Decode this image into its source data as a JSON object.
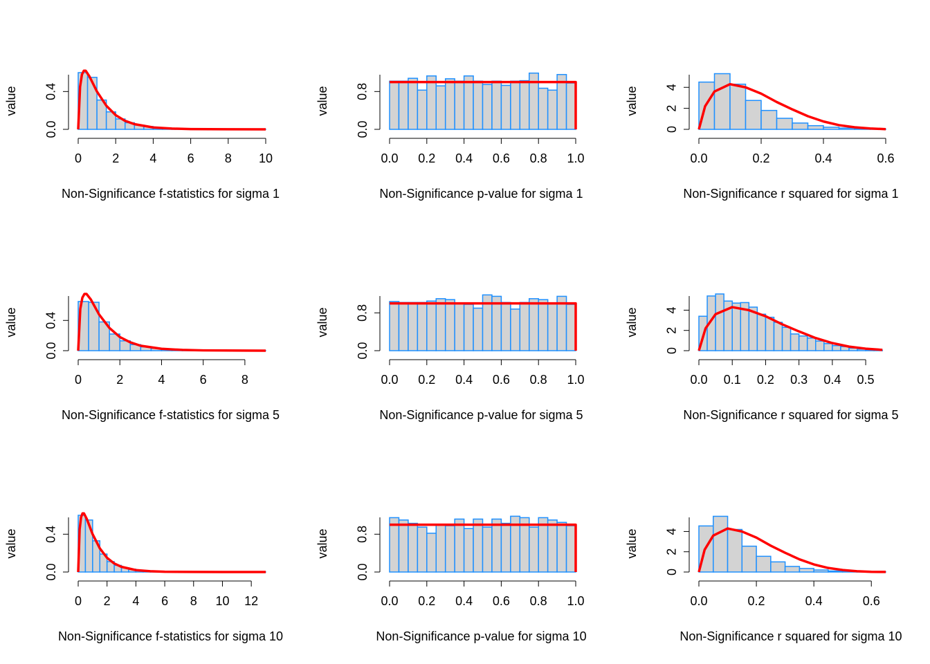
{
  "chart_data": [
    {
      "type": "histogram",
      "x_label": "Non-Significance f-statistics for sigma 1",
      "y_label": "value",
      "bar_color": "#d3d3d3",
      "edge_color": "#1e90ff",
      "bins": [
        0,
        0.5,
        1,
        1.5,
        2,
        2.5,
        3,
        3.5,
        4,
        4.5,
        5,
        5.5,
        6,
        6.5,
        7,
        7.5,
        8,
        8.5,
        9,
        9.5,
        10
      ],
      "values": [
        0.6,
        0.55,
        0.31,
        0.185,
        0.11,
        0.07,
        0.045,
        0.03,
        0.02,
        0.013,
        0.008,
        0.005,
        0.004,
        0.003,
        0.002,
        0.001,
        0.001,
        0.001,
        0,
        0.001
      ],
      "curve": {
        "color": "#ff0000",
        "x": [
          0,
          0.1,
          0.2,
          0.3,
          0.4,
          0.6,
          0.8,
          1,
          1.5,
          2,
          2.5,
          3,
          4,
          5,
          6,
          8,
          10
        ],
        "values": [
          0,
          0.45,
          0.58,
          0.62,
          0.62,
          0.56,
          0.48,
          0.4,
          0.25,
          0.15,
          0.09,
          0.055,
          0.02,
          0.008,
          0.003,
          0.001,
          0
        ]
      },
      "xlim": [
        0,
        10
      ],
      "ylim": [
        0,
        0.6
      ],
      "xticks": [
        0,
        2,
        4,
        6,
        8,
        10
      ],
      "yticks": [
        {
          "value": 0,
          "label": "0.0"
        },
        0.4
      ]
    },
    {
      "type": "histogram",
      "x_label": "Non-Significance p-value for sigma 1",
      "y_label": "value",
      "bar_color": "#d3d3d3",
      "edge_color": "#1e90ff",
      "bins": [
        0,
        0.05,
        0.1,
        0.15,
        0.2,
        0.25,
        0.3,
        0.35,
        0.4,
        0.45,
        0.5,
        0.55,
        0.6,
        0.65,
        0.7,
        0.75,
        0.8,
        0.85,
        0.9,
        0.95,
        1
      ],
      "values": [
        1.02,
        1.02,
        1.08,
        0.83,
        1.13,
        0.92,
        1.07,
        1.02,
        1.13,
        1.02,
        0.95,
        1.02,
        0.93,
        1.02,
        1.03,
        1.19,
        0.87,
        0.83,
        1.16,
        0.98
      ],
      "curve": {
        "color": "#ff0000",
        "x": [
          0,
          1,
          1
        ],
        "values": [
          1,
          1,
          0
        ]
      },
      "xlim": [
        0,
        1
      ],
      "ylim": [
        0,
        1.2
      ],
      "xticks": [
        {
          "value": 0,
          "label": "0.0"
        },
        0.2,
        0.4,
        0.6,
        0.8,
        {
          "value": 1,
          "label": "1.0"
        }
      ],
      "yticks": [
        {
          "value": 0,
          "label": "0.0"
        },
        0.8
      ]
    },
    {
      "type": "histogram",
      "x_label": "Non-Significance r squared for sigma 1",
      "y_label": "value",
      "bar_color": "#d3d3d3",
      "edge_color": "#1e90ff",
      "bins": [
        0,
        0.05,
        0.1,
        0.15,
        0.2,
        0.25,
        0.3,
        0.35,
        0.4,
        0.45,
        0.5,
        0.55,
        0.6
      ],
      "values": [
        4.5,
        5.3,
        4.3,
        2.75,
        1.8,
        1.05,
        0.6,
        0.35,
        0.2,
        0.12,
        0.06,
        0.03
      ],
      "curve": {
        "color": "#ff0000",
        "x": [
          0,
          0.02,
          0.05,
          0.1,
          0.15,
          0.2,
          0.25,
          0.3,
          0.35,
          0.4,
          0.45,
          0.5,
          0.55,
          0.6
        ],
        "values": [
          0,
          2.2,
          3.6,
          4.3,
          4.0,
          3.4,
          2.6,
          1.9,
          1.25,
          0.75,
          0.4,
          0.2,
          0.08,
          0.02
        ]
      },
      "xlim": [
        0,
        0.6
      ],
      "ylim": [
        0,
        5.4
      ],
      "xticks": [
        {
          "value": 0,
          "label": "0.0"
        },
        0.2,
        0.4,
        0.6
      ],
      "yticks": [
        0,
        2,
        4
      ]
    },
    {
      "type": "histogram",
      "x_label": "Non-Significance f-statistics for sigma 5",
      "y_label": "value",
      "bar_color": "#d3d3d3",
      "edge_color": "#1e90ff",
      "bins": [
        0,
        0.5,
        1,
        1.5,
        2,
        2.5,
        3,
        3.5,
        4,
        4.5,
        5,
        5.5,
        6,
        6.5,
        7,
        7.5,
        8,
        8.5,
        9
      ],
      "values": [
        0.65,
        0.64,
        0.38,
        0.22,
        0.13,
        0.08,
        0.05,
        0.03,
        0.02,
        0.013,
        0.008,
        0.005,
        0.003,
        0.002,
        0.001,
        0.001,
        0.0005,
        0.0005
      ],
      "curve": {
        "color": "#ff0000",
        "x": [
          0,
          0.1,
          0.2,
          0.3,
          0.4,
          0.6,
          0.8,
          1,
          1.5,
          2,
          2.5,
          3,
          4,
          5,
          6,
          8,
          9
        ],
        "values": [
          0,
          0.55,
          0.7,
          0.75,
          0.75,
          0.68,
          0.58,
          0.48,
          0.3,
          0.18,
          0.11,
          0.065,
          0.025,
          0.01,
          0.004,
          0.001,
          0.0005
        ]
      },
      "xlim": [
        0,
        9
      ],
      "ylim": [
        0,
        0.75
      ],
      "xticks": [
        0,
        2,
        4,
        6,
        8
      ],
      "yticks": [
        {
          "value": 0,
          "label": "0.0"
        },
        0.4
      ]
    },
    {
      "type": "histogram",
      "x_label": "Non-Significance p-value for sigma 5",
      "y_label": "value",
      "bar_color": "#d3d3d3",
      "edge_color": "#1e90ff",
      "bins": [
        0,
        0.05,
        0.1,
        0.15,
        0.2,
        0.25,
        0.3,
        0.35,
        0.4,
        0.45,
        0.5,
        0.55,
        0.6,
        0.65,
        0.7,
        0.75,
        0.8,
        0.85,
        0.9,
        0.95,
        1
      ],
      "values": [
        1.04,
        1.02,
        1.02,
        1.02,
        1.05,
        1.1,
        1.08,
        1.0,
        0.98,
        0.9,
        1.18,
        1.15,
        1.02,
        0.88,
        1.02,
        1.1,
        1.08,
        1.0,
        1.15,
        0.98
      ],
      "curve": {
        "color": "#ff0000",
        "x": [
          0,
          1,
          1
        ],
        "values": [
          1,
          1,
          0
        ]
      },
      "xlim": [
        0,
        1
      ],
      "ylim": [
        0,
        1.2
      ],
      "xticks": [
        {
          "value": 0,
          "label": "0.0"
        },
        0.2,
        0.4,
        0.6,
        0.8,
        {
          "value": 1,
          "label": "1.0"
        }
      ],
      "yticks": [
        {
          "value": 0,
          "label": "0.0"
        },
        0.8
      ]
    },
    {
      "type": "histogram",
      "x_label": "Non-Significance r squared for sigma 5",
      "y_label": "value",
      "bar_color": "#d3d3d3",
      "edge_color": "#1e90ff",
      "bins": [
        0,
        0.025,
        0.05,
        0.075,
        0.1,
        0.125,
        0.15,
        0.175,
        0.2,
        0.225,
        0.25,
        0.275,
        0.3,
        0.325,
        0.35,
        0.375,
        0.4,
        0.425,
        0.45,
        0.475,
        0.5,
        0.525,
        0.55
      ],
      "values": [
        3.4,
        5.4,
        5.6,
        4.9,
        4.7,
        4.75,
        4.3,
        3.6,
        3.3,
        2.8,
        2.3,
        1.65,
        1.45,
        1.25,
        0.95,
        0.7,
        0.5,
        0.4,
        0.25,
        0.15,
        0.1,
        0.05
      ],
      "curve": {
        "color": "#ff0000",
        "x": [
          0,
          0.02,
          0.05,
          0.1,
          0.15,
          0.2,
          0.25,
          0.3,
          0.35,
          0.4,
          0.45,
          0.5,
          0.55
        ],
        "values": [
          0,
          2.2,
          3.6,
          4.3,
          4.0,
          3.4,
          2.6,
          1.9,
          1.25,
          0.75,
          0.4,
          0.2,
          0.08
        ]
      },
      "xlim": [
        0,
        0.56
      ],
      "ylim": [
        0,
        5.6
      ],
      "xticks": [
        {
          "value": 0,
          "label": "0.0"
        },
        0.1,
        0.2,
        0.3,
        0.4,
        0.5
      ],
      "yticks": [
        0,
        2,
        4
      ]
    },
    {
      "type": "histogram",
      "x_label": "Non-Significance f-statistics for sigma 10",
      "y_label": "value",
      "bar_color": "#d3d3d3",
      "edge_color": "#1e90ff",
      "bins": [
        0,
        0.5,
        1,
        1.5,
        2,
        2.5,
        3,
        3.5,
        4,
        4.5,
        5,
        5.5,
        6,
        6.5,
        7,
        7.5,
        8,
        8.5,
        9,
        9.5,
        10,
        10.5,
        11,
        11.5,
        12,
        12.5,
        13
      ],
      "values": [
        0.6,
        0.55,
        0.33,
        0.19,
        0.11,
        0.07,
        0.045,
        0.03,
        0.02,
        0.013,
        0.008,
        0.005,
        0.003,
        0.002,
        0.001,
        0.001,
        0.001,
        0.0005,
        0,
        0,
        0,
        0,
        0,
        0,
        0,
        0.0005
      ],
      "curve": {
        "color": "#ff0000",
        "x": [
          0,
          0.1,
          0.2,
          0.3,
          0.4,
          0.6,
          0.8,
          1,
          1.5,
          2,
          2.5,
          3,
          4,
          5,
          6,
          8,
          10,
          13
        ],
        "values": [
          0,
          0.45,
          0.58,
          0.62,
          0.62,
          0.56,
          0.48,
          0.4,
          0.25,
          0.15,
          0.09,
          0.055,
          0.02,
          0.008,
          0.003,
          0.001,
          0,
          0
        ]
      },
      "xlim": [
        0,
        13
      ],
      "ylim": [
        0,
        0.6
      ],
      "xticks": [
        0,
        2,
        4,
        6,
        8,
        10,
        12
      ],
      "yticks": [
        {
          "value": 0,
          "label": "0.0"
        },
        0.4
      ]
    },
    {
      "type": "histogram",
      "x_label": "Non-Significance p-value for sigma 10",
      "y_label": "value",
      "bar_color": "#d3d3d3",
      "edge_color": "#1e90ff",
      "bins": [
        0,
        0.05,
        0.1,
        0.15,
        0.2,
        0.25,
        0.3,
        0.35,
        0.4,
        0.45,
        0.5,
        0.55,
        0.6,
        0.65,
        0.7,
        0.75,
        0.8,
        0.85,
        0.9,
        0.95,
        1
      ],
      "values": [
        1.15,
        1.1,
        1.03,
        0.95,
        0.82,
        1.0,
        0.98,
        1.12,
        0.92,
        1.12,
        0.95,
        1.12,
        1.03,
        1.18,
        1.15,
        0.95,
        1.15,
        1.1,
        1.05,
        0.98
      ],
      "curve": {
        "color": "#ff0000",
        "x": [
          0,
          1,
          1
        ],
        "values": [
          1,
          1,
          0
        ]
      },
      "xlim": [
        0,
        1
      ],
      "ylim": [
        0,
        1.2
      ],
      "xticks": [
        {
          "value": 0,
          "label": "0.0"
        },
        0.2,
        0.4,
        0.6,
        0.8,
        {
          "value": 1,
          "label": "1.0"
        }
      ],
      "yticks": [
        {
          "value": 0,
          "label": "0.0"
        },
        0.8
      ]
    },
    {
      "type": "histogram",
      "x_label": "Non-Significance r squared for sigma 10",
      "y_label": "value",
      "bar_color": "#d3d3d3",
      "edge_color": "#1e90ff",
      "bins": [
        0,
        0.05,
        0.1,
        0.15,
        0.2,
        0.25,
        0.3,
        0.35,
        0.4,
        0.45,
        0.5,
        0.55,
        0.6,
        0.65
      ],
      "values": [
        4.55,
        5.5,
        4.2,
        2.55,
        1.55,
        1.0,
        0.55,
        0.35,
        0.2,
        0.1,
        0.06,
        0.03,
        0.02
      ],
      "curve": {
        "color": "#ff0000",
        "x": [
          0,
          0.02,
          0.05,
          0.1,
          0.15,
          0.2,
          0.25,
          0.3,
          0.35,
          0.4,
          0.45,
          0.5,
          0.55,
          0.6,
          0.65
        ],
        "values": [
          0,
          2.2,
          3.6,
          4.3,
          4.0,
          3.4,
          2.6,
          1.9,
          1.25,
          0.75,
          0.4,
          0.2,
          0.08,
          0.02,
          0.005
        ]
      },
      "xlim": [
        0,
        0.65
      ],
      "ylim": [
        0,
        5.6
      ],
      "xticks": [
        {
          "value": 0,
          "label": "0.0"
        },
        0.2,
        0.4,
        0.6
      ],
      "yticks": [
        0,
        2,
        4
      ]
    }
  ]
}
